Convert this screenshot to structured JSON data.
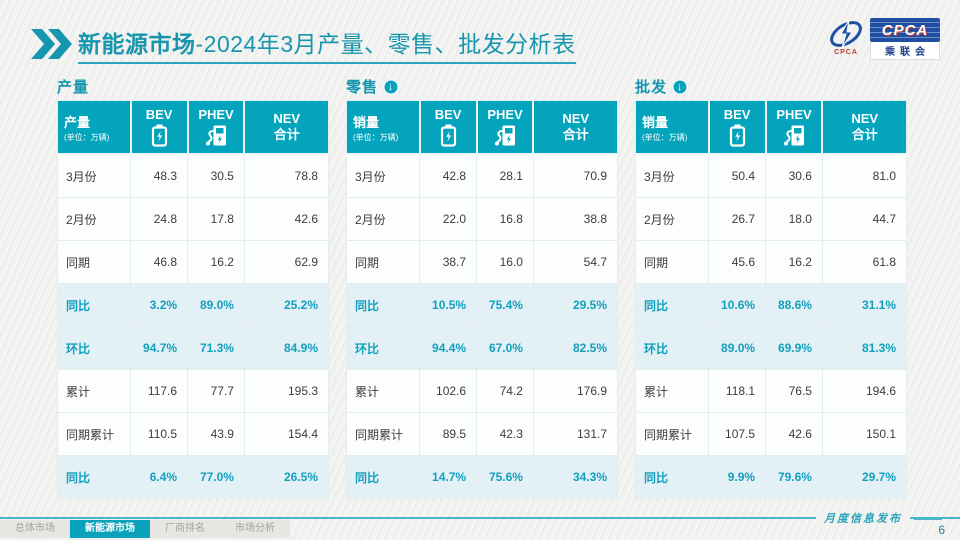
{
  "header": {
    "title_bold": "新能源市场",
    "title_rest": "-2024年3月产量、零售、批发分析表",
    "logo": {
      "main": "CPCA",
      "emblem_sub": "CPCA",
      "cn": "乘联会"
    }
  },
  "colors": {
    "accent_teal": "#03a4bc",
    "title_teal": "#1596ae",
    "highlight_row_bg": "#e3f1f7",
    "logo_blue": "#1f4fa3"
  },
  "watermark": "CPCA 乘联会",
  "tables": [
    {
      "section_title": "产量",
      "has_arrow": false,
      "col1_label": "产量",
      "col1_unit": "(单位：万辆)",
      "columns": [
        {
          "label": "BEV",
          "icon": "battery-icon"
        },
        {
          "label": "PHEV",
          "icon": "charging-station-icon"
        },
        {
          "label": "NEV",
          "label2": "合计"
        }
      ],
      "rows": [
        {
          "label": "3月份",
          "values": [
            "48.3",
            "30.5",
            "78.8"
          ],
          "highlight": false
        },
        {
          "label": "2月份",
          "values": [
            "24.8",
            "17.8",
            "42.6"
          ],
          "highlight": false
        },
        {
          "label": "同期",
          "values": [
            "46.8",
            "16.2",
            "62.9"
          ],
          "highlight": false
        },
        {
          "label": "同比",
          "values": [
            "3.2%",
            "89.0%",
            "25.2%"
          ],
          "highlight": true
        },
        {
          "label": "环比",
          "values": [
            "94.7%",
            "71.3%",
            "84.9%"
          ],
          "highlight": true
        },
        {
          "label": "累计",
          "values": [
            "117.6",
            "77.7",
            "195.3"
          ],
          "highlight": false
        },
        {
          "label": "同期累计",
          "values": [
            "110.5",
            "43.9",
            "154.4"
          ],
          "highlight": false
        },
        {
          "label": "同比",
          "values": [
            "6.4%",
            "77.0%",
            "26.5%"
          ],
          "highlight": true
        }
      ]
    },
    {
      "section_title": "零售",
      "has_arrow": true,
      "col1_label": "销量",
      "col1_unit": "(单位：万辆)",
      "columns": [
        {
          "label": "BEV",
          "icon": "battery-icon"
        },
        {
          "label": "PHEV",
          "icon": "charging-station-icon"
        },
        {
          "label": "NEV",
          "label2": "合计"
        }
      ],
      "rows": [
        {
          "label": "3月份",
          "values": [
            "42.8",
            "28.1",
            "70.9"
          ],
          "highlight": false
        },
        {
          "label": "2月份",
          "values": [
            "22.0",
            "16.8",
            "38.8"
          ],
          "highlight": false
        },
        {
          "label": "同期",
          "values": [
            "38.7",
            "16.0",
            "54.7"
          ],
          "highlight": false
        },
        {
          "label": "同比",
          "values": [
            "10.5%",
            "75.4%",
            "29.5%"
          ],
          "highlight": true
        },
        {
          "label": "环比",
          "values": [
            "94.4%",
            "67.0%",
            "82.5%"
          ],
          "highlight": true
        },
        {
          "label": "累计",
          "values": [
            "102.6",
            "74.2",
            "176.9"
          ],
          "highlight": false
        },
        {
          "label": "同期累计",
          "values": [
            "89.5",
            "42.3",
            "131.7"
          ],
          "highlight": false
        },
        {
          "label": "同比",
          "values": [
            "14.7%",
            "75.6%",
            "34.3%"
          ],
          "highlight": true
        }
      ]
    },
    {
      "section_title": "批发",
      "has_arrow": true,
      "col1_label": "销量",
      "col1_unit": "(单位：万辆)",
      "columns": [
        {
          "label": "BEV",
          "icon": "battery-icon"
        },
        {
          "label": "PHEV",
          "icon": "charging-station-icon"
        },
        {
          "label": "NEV",
          "label2": "合计"
        }
      ],
      "rows": [
        {
          "label": "3月份",
          "values": [
            "50.4",
            "30.6",
            "81.0"
          ],
          "highlight": false
        },
        {
          "label": "2月份",
          "values": [
            "26.7",
            "18.0",
            "44.7"
          ],
          "highlight": false
        },
        {
          "label": "同期",
          "values": [
            "45.6",
            "16.2",
            "61.8"
          ],
          "highlight": false
        },
        {
          "label": "同比",
          "values": [
            "10.6%",
            "88.6%",
            "31.1%"
          ],
          "highlight": true
        },
        {
          "label": "环比",
          "values": [
            "89.0%",
            "69.9%",
            "81.3%"
          ],
          "highlight": true
        },
        {
          "label": "累计",
          "values": [
            "118.1",
            "76.5",
            "194.6"
          ],
          "highlight": false
        },
        {
          "label": "同期累计",
          "values": [
            "107.5",
            "42.6",
            "150.1"
          ],
          "highlight": false
        },
        {
          "label": "同比",
          "values": [
            "9.9%",
            "79.6%",
            "29.7%"
          ],
          "highlight": true
        }
      ]
    }
  ],
  "footer": {
    "nav": [
      {
        "label": "总体市场",
        "active": false
      },
      {
        "label": "新能源市场",
        "active": true
      },
      {
        "label": "厂商排名",
        "active": false
      },
      {
        "label": "市场分析",
        "active": false
      }
    ],
    "publication": "月度信息发布",
    "page_number": "6"
  }
}
